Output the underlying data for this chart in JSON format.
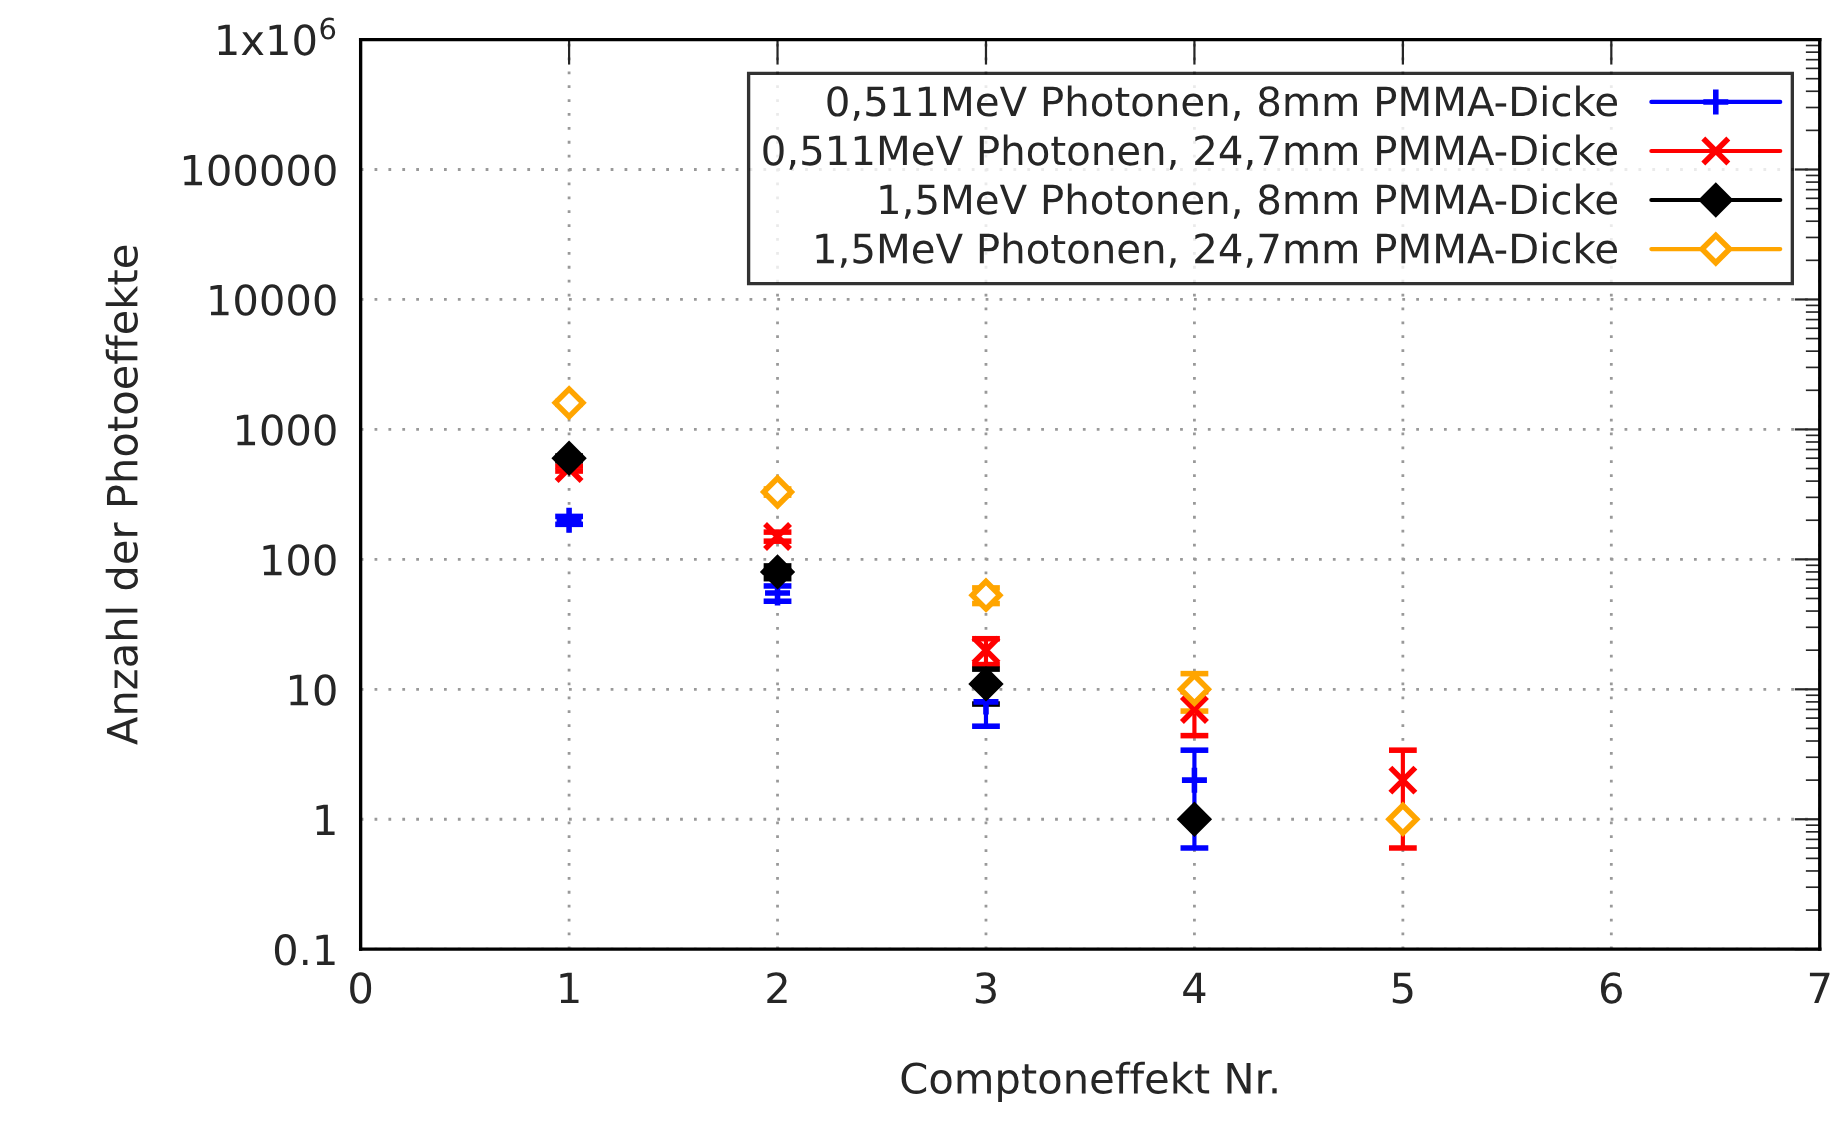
{
  "chart_data": {
    "type": "scatter",
    "xlabel": "Comptoneffekt Nr.",
    "ylabel": "Anzahl der Photoeffekte",
    "log": "y",
    "grid": true,
    "legend": "top right",
    "xlim": [
      0,
      7
    ],
    "xticks": [
      0,
      1,
      2,
      3,
      4,
      5,
      6,
      7
    ],
    "ylim": [
      0.1,
      1000000
    ],
    "yticks": [
      0.1,
      1,
      10,
      100,
      1000,
      10000,
      100000,
      {
        "value": 1000000,
        "label": "1x10$^{6}$"
      }
    ],
    "series": [
      {
        "name": "0,511MeV Photonen, 8mm PMMA-Dicke",
        "color": "#0000ff",
        "marker": "plus",
        "x": [
          1,
          2,
          3,
          4
        ],
        "values": [
          200,
          55,
          8,
          2
        ],
        "errors": [
          14,
          7.4,
          2.8,
          1.4
        ]
      },
      {
        "name": "0,511MeV Photonen, 24,7mm PMMA-Dicke",
        "color": "#ff0000",
        "marker": "x",
        "x": [
          1,
          2,
          3,
          4,
          5
        ],
        "values": [
          500,
          150,
          20,
          7,
          2
        ],
        "errors": [
          22,
          12,
          4.5,
          2.6,
          1.4
        ]
      },
      {
        "name": "1,5MeV Photonen, 8mm PMMA-Dicke",
        "color": "#000000",
        "marker": "diamond",
        "x": [
          1,
          2,
          3,
          4
        ],
        "values": [
          600,
          80,
          11,
          1
        ],
        "errors": [
          24,
          9,
          3.3,
          null
        ]
      },
      {
        "name": "1,5MeV Photonen, 24,7mm PMMA-Dicke",
        "color": "#ffa500",
        "marker": "diamond_open",
        "x": [
          1,
          2,
          3,
          4,
          5
        ],
        "values": [
          1600,
          330,
          53,
          10,
          1
        ],
        "errors": [
          40,
          18,
          7.3,
          3.2,
          null
        ]
      }
    ]
  }
}
